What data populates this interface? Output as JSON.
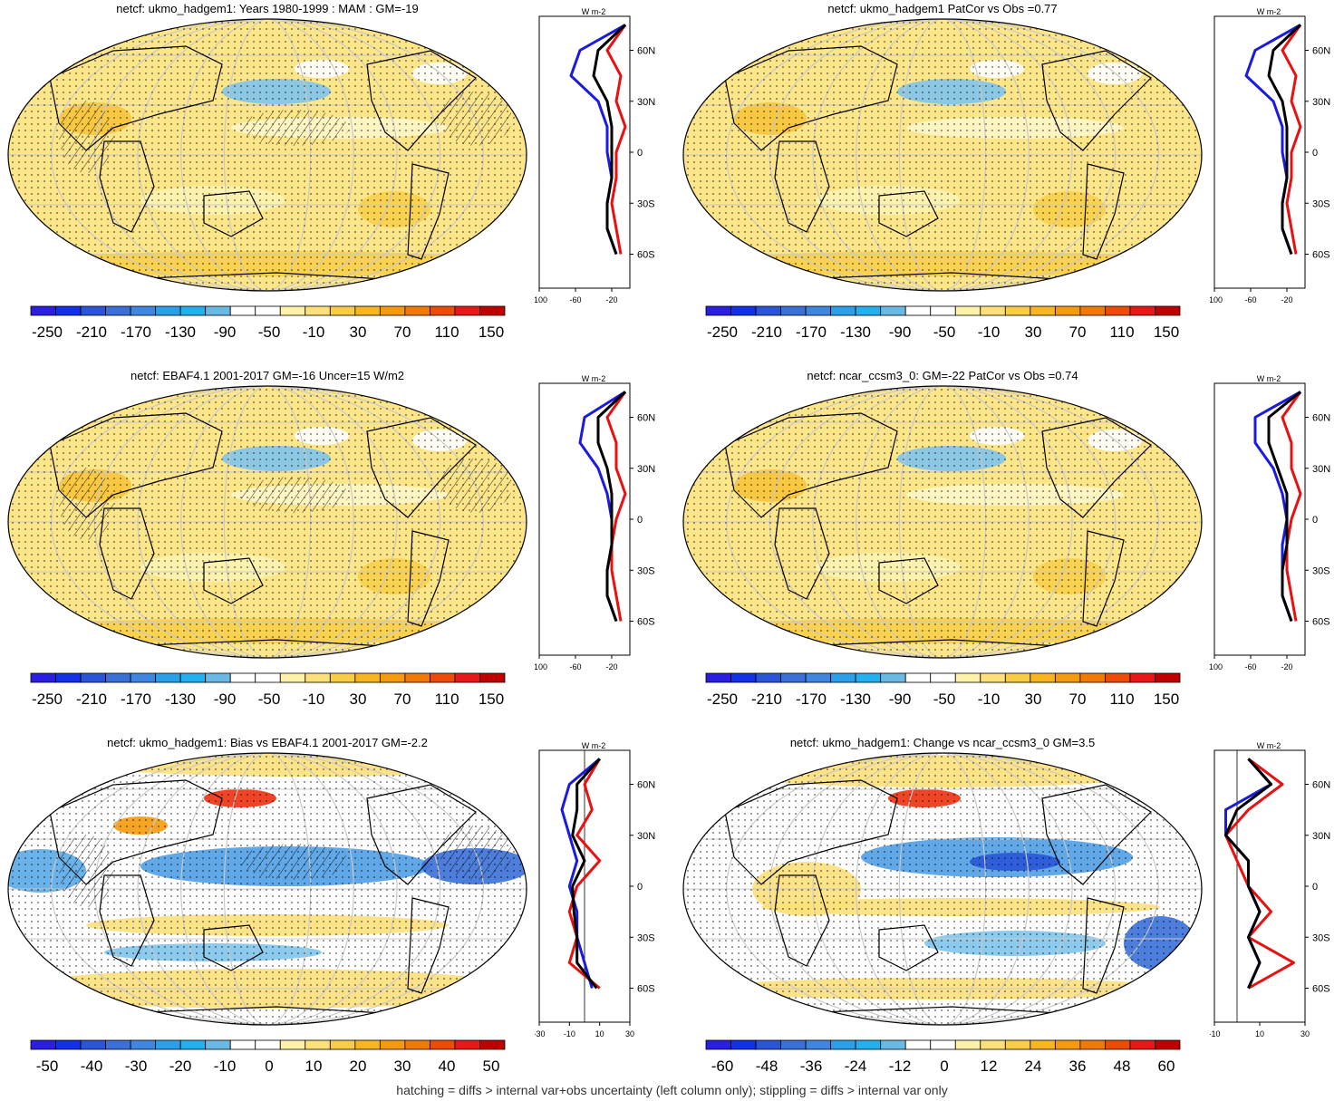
{
  "colors": {
    "scale": [
      "#2a1ee0",
      "#1230e8",
      "#2a55d8",
      "#3a70d8",
      "#3f86e0",
      "#2aa0e8",
      "#22b0ee",
      "#6ab8e4",
      "#ffffff",
      "#ffffff",
      "#fff2a8",
      "#fde07a",
      "#f9cc45",
      "#f7b520",
      "#f49a0c",
      "#f07a04",
      "#ee4a08",
      "#e81818",
      "#c00000"
    ],
    "land": "#000000",
    "grid": "#c8c8c8",
    "obs": "#e81010",
    "model": "#1a1ae0",
    "mean": "#000000"
  },
  "panels": [
    {
      "title": "netcf: ukmo_hadgem1: Years 1980-1999 : MAM : GM=-19",
      "palette": "warm",
      "hatch": true,
      "stipple": true,
      "colorbar_labels": [
        "-250",
        "-210",
        "-170",
        "-130",
        "-90",
        "-50",
        "-10",
        "30",
        "70",
        "110",
        "150"
      ],
      "zonal_unit": "W m-2",
      "zonal_xticks": [
        "-100",
        "-60",
        "-20"
      ],
      "zonal_lat_ticks": [
        "60N",
        "30N",
        "0",
        "30S",
        "60S"
      ],
      "chart_data": {
        "type": "line",
        "xlim": [
          -100,
          0
        ],
        "lat": [
          75,
          60,
          45,
          30,
          15,
          0,
          -15,
          -30,
          -45,
          -60
        ],
        "series": [
          {
            "values": [
              -5,
              -25,
              -10,
              -15,
              -5,
              -15,
              -15,
              -20,
              -15,
              -10
            ]
          },
          {
            "values": [
              -5,
              -55,
              -65,
              -35,
              -25,
              -25,
              -20,
              -25,
              -25,
              -15
            ]
          },
          {
            "values": [
              -5,
              -35,
              -40,
              -25,
              -20,
              -20,
              -20,
              -25,
              -25,
              -15
            ]
          }
        ]
      }
    },
    {
      "title": "netcf: ukmo_hadgem1 PatCor vs Obs =0.77",
      "palette": "warm",
      "hatch": false,
      "stipple": true,
      "colorbar_labels": [
        "-250",
        "-210",
        "-170",
        "-130",
        "-90",
        "-50",
        "-10",
        "30",
        "70",
        "110",
        "150"
      ],
      "zonal_unit": "W m-2",
      "zonal_xticks": [
        "-100",
        "-60",
        "-20"
      ],
      "zonal_lat_ticks": [
        "60N",
        "30N",
        "0",
        "30S",
        "60S"
      ],
      "chart_data": {
        "type": "line",
        "xlim": [
          -100,
          0
        ],
        "lat": [
          75,
          60,
          45,
          30,
          15,
          0,
          -15,
          -30,
          -45,
          -60
        ],
        "series": [
          {
            "values": [
              -5,
              -25,
              -10,
              -15,
              -5,
              -15,
              -15,
              -20,
              -15,
              -10
            ]
          },
          {
            "values": [
              -5,
              -55,
              -65,
              -35,
              -25,
              -25,
              -20,
              -25,
              -25,
              -15
            ]
          },
          {
            "values": [
              -5,
              -35,
              -40,
              -25,
              -20,
              -20,
              -20,
              -25,
              -25,
              -15
            ]
          }
        ]
      }
    },
    {
      "title": "netcf: EBAF4.1 2001-2017 GM=-16 Uncer=15 W/m2",
      "palette": "warm",
      "hatch": true,
      "stipple": true,
      "colorbar_labels": [
        "-250",
        "-210",
        "-170",
        "-130",
        "-90",
        "-50",
        "-10",
        "30",
        "70",
        "110",
        "150"
      ],
      "zonal_unit": "W m-2",
      "zonal_xticks": [
        "-100",
        "-60",
        "-20"
      ],
      "zonal_lat_ticks": [
        "60N",
        "30N",
        "0",
        "30S",
        "60S"
      ],
      "chart_data": {
        "type": "line",
        "xlim": [
          -100,
          0
        ],
        "lat": [
          75,
          60,
          45,
          30,
          15,
          0,
          -15,
          -30,
          -45,
          -60
        ],
        "series": [
          {
            "values": [
              -5,
              -25,
              -15,
              -15,
              -5,
              -15,
              -20,
              -20,
              -15,
              -10
            ]
          },
          {
            "values": [
              -5,
              -50,
              -55,
              -35,
              -25,
              -20,
              -20,
              -25,
              -25,
              -15
            ]
          },
          {
            "values": [
              -5,
              -35,
              -35,
              -25,
              -20,
              -20,
              -20,
              -25,
              -25,
              -15
            ]
          }
        ]
      }
    },
    {
      "title": "netcf: ncar_ccsm3_0: GM=-22 PatCor vs Obs =0.74",
      "palette": "warm",
      "hatch": false,
      "stipple": true,
      "colorbar_labels": [
        "-250",
        "-210",
        "-170",
        "-130",
        "-90",
        "-50",
        "-10",
        "30",
        "70",
        "110",
        "150"
      ],
      "zonal_unit": "W m-2",
      "zonal_xticks": [
        "-100",
        "-60",
        "-20"
      ],
      "zonal_lat_ticks": [
        "60N",
        "30N",
        "0",
        "30S",
        "60S"
      ],
      "chart_data": {
        "type": "line",
        "xlim": [
          -100,
          0
        ],
        "lat": [
          75,
          60,
          45,
          30,
          15,
          0,
          -15,
          -30,
          -45,
          -60
        ],
        "series": [
          {
            "values": [
              -5,
              -25,
              -15,
              -15,
              -5,
              -15,
              -20,
              -20,
              -15,
              -10
            ]
          },
          {
            "values": [
              -5,
              -55,
              -55,
              -35,
              -25,
              -20,
              -25,
              -25,
              -25,
              -15
            ]
          },
          {
            "values": [
              -5,
              -40,
              -40,
              -30,
              -20,
              -20,
              -20,
              -25,
              -25,
              -15
            ]
          }
        ]
      }
    },
    {
      "title": "netcf: ukmo_hadgem1: Bias vs EBAF4.1 2001-2017 GM=-2.2",
      "palette": "bias",
      "hatch": true,
      "stipple": true,
      "colorbar_labels": [
        "-50",
        "-40",
        "-30",
        "-20",
        "-10",
        "0",
        "10",
        "20",
        "30",
        "40",
        "50"
      ],
      "zonal_unit": "W m-2",
      "zonal_xticks": [
        "-30",
        "-10",
        "10",
        "30"
      ],
      "zonal_lat_ticks": [
        "60N",
        "30N",
        "0",
        "30S",
        "60S"
      ],
      "chart_data": {
        "type": "line",
        "xlim": [
          -30,
          30
        ],
        "lat": [
          75,
          60,
          45,
          30,
          15,
          0,
          -15,
          -30,
          -45,
          -60
        ],
        "series": [
          {
            "values": [
              10,
              0,
              5,
              -5,
              10,
              -5,
              -10,
              -5,
              -10,
              10
            ]
          },
          {
            "values": [
              10,
              -10,
              -15,
              -10,
              -5,
              -10,
              -5,
              -5,
              0,
              5
            ]
          },
          {
            "values": [
              10,
              -5,
              -5,
              -8,
              0,
              -8,
              -7,
              -5,
              -5,
              8
            ]
          }
        ]
      }
    },
    {
      "title": "netcf: ukmo_hadgem1: Change vs ncar_ccsm3_0 GM=3.5",
      "palette": "change",
      "hatch": false,
      "stipple": true,
      "colorbar_labels": [
        "-60",
        "-48",
        "-36",
        "-24",
        "-12",
        "0",
        "12",
        "24",
        "36",
        "48",
        "60"
      ],
      "zonal_unit": "W m-2",
      "zonal_xticks": [
        "-10",
        "10",
        "30"
      ],
      "zonal_lat_ticks": [
        "60N",
        "30N",
        "0",
        "30S",
        "60S"
      ],
      "chart_data": {
        "type": "line",
        "xlim": [
          -10,
          30
        ],
        "lat": [
          75,
          60,
          45,
          30,
          15,
          0,
          -15,
          -30,
          -45,
          -60
        ],
        "series": [
          {
            "values": [
              5,
              20,
              5,
              -5,
              0,
              5,
              15,
              5,
              25,
              5
            ]
          },
          {
            "values": [
              5,
              15,
              -5,
              -5,
              5,
              5,
              10,
              5,
              10,
              5
            ]
          },
          {
            "values": [
              5,
              15,
              0,
              -5,
              5,
              5,
              10,
              5,
              10,
              5
            ]
          }
        ]
      }
    }
  ],
  "caption": "hatching = diffs > internal var+obs uncertainty (left column only); stippling = diffs > internal var only"
}
